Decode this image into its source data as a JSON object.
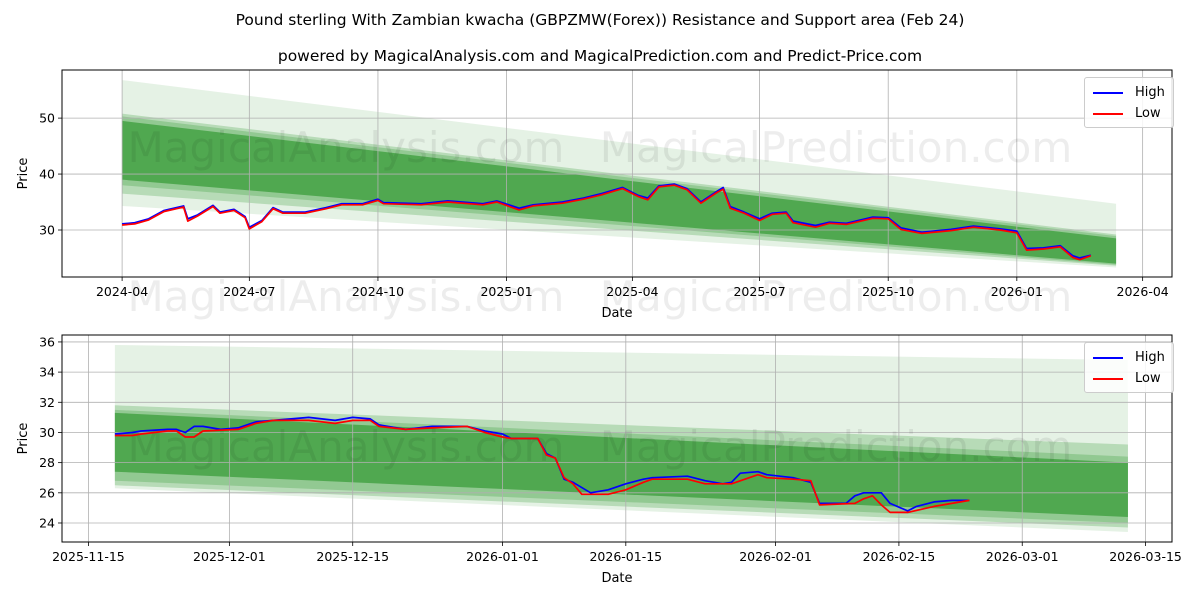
{
  "title": "Pound sterling With Zambian kwacha (GBPZMW(Forex)) Resistance and Support area (Feb 24)",
  "subtitle": "powered by MagicalAnalysis.com and MagicalPrediction.com and Predict-Price.com",
  "watermarks": [
    "MagicalAnalysis.com",
    "MagicalPrediction.com"
  ],
  "colors": {
    "high": "#0000ff",
    "low": "#ff0000",
    "band": "#008000"
  },
  "chart_data": [
    {
      "type": "line",
      "xlabel": "Date",
      "ylabel": "Price",
      "xlim": [
        "2024-02-18",
        "2026-04-22"
      ],
      "ylim": [
        21.6,
        58.6
      ],
      "xticks": [
        "2024-04",
        "2024-07",
        "2024-10",
        "2025-01",
        "2025-04",
        "2025-07",
        "2025-10",
        "2026-01",
        "2026-04"
      ],
      "yticks": [
        30,
        40,
        50
      ],
      "grid": true,
      "legend": {
        "position": "top-right",
        "entries": [
          "High",
          "Low"
        ]
      },
      "bands": {
        "x": [
          "2024-04-01",
          "2026-03-13"
        ],
        "layers": [
          {
            "upper": [
              56.8,
              34.7
            ],
            "lower": [
              34.3,
              23.3
            ],
            "opacity": 0.1
          },
          {
            "upper": [
              50.8,
              29.2
            ],
            "lower": [
              36.5,
              23.6
            ],
            "opacity": 0.2
          },
          {
            "upper": [
              50.3,
              28.9
            ],
            "lower": [
              38.0,
              23.8
            ],
            "opacity": 0.2
          },
          {
            "upper": [
              49.5,
              28.5
            ],
            "lower": [
              39.0,
              24.0
            ],
            "opacity": 0.45
          }
        ]
      },
      "series": [
        {
          "name": "High",
          "x": [
            "2024-04-01",
            "2024-04-10",
            "2024-04-20",
            "2024-05-01",
            "2024-05-15",
            "2024-05-18",
            "2024-05-25",
            "2024-06-05",
            "2024-06-10",
            "2024-06-20",
            "2024-06-28",
            "2024-07-01",
            "2024-07-10",
            "2024-07-18",
            "2024-07-25",
            "2024-08-10",
            "2024-08-25",
            "2024-09-05",
            "2024-09-20",
            "2024-10-01",
            "2024-10-05",
            "2024-11-01",
            "2024-11-20",
            "2024-12-15",
            "2024-12-25",
            "2025-01-10",
            "2025-01-20",
            "2025-02-10",
            "2025-02-25",
            "2025-03-10",
            "2025-03-25",
            "2025-04-05",
            "2025-04-12",
            "2025-04-20",
            "2025-05-01",
            "2025-05-10",
            "2025-05-20",
            "2025-06-01",
            "2025-06-05",
            "2025-06-10",
            "2025-06-20",
            "2025-07-01",
            "2025-07-10",
            "2025-07-20",
            "2025-07-25",
            "2025-08-10",
            "2025-08-20",
            "2025-09-01",
            "2025-09-20",
            "2025-10-01",
            "2025-10-10",
            "2025-10-25",
            "2025-11-15",
            "2025-12-01",
            "2025-12-20",
            "2026-01-01",
            "2026-01-08",
            "2026-01-20",
            "2026-02-01",
            "2026-02-10",
            "2026-02-15",
            "2026-02-23"
          ],
          "values": [
            31.1,
            31.3,
            32.0,
            33.5,
            34.3,
            32.0,
            32.7,
            34.4,
            33.2,
            33.7,
            32.4,
            30.5,
            31.7,
            34.0,
            33.2,
            33.2,
            34.0,
            34.7,
            34.7,
            35.5,
            34.9,
            34.7,
            35.2,
            34.7,
            35.2,
            33.9,
            34.5,
            35.0,
            35.7,
            36.5,
            37.6,
            36.2,
            35.7,
            37.9,
            38.2,
            37.4,
            35.0,
            37.0,
            37.6,
            34.2,
            33.2,
            32.0,
            33.0,
            33.2,
            31.6,
            30.8,
            31.4,
            31.2,
            32.3,
            32.2,
            30.4,
            29.6,
            30.1,
            30.7,
            30.2,
            29.8,
            26.7,
            26.8,
            27.2,
            25.4,
            25.0,
            25.5
          ]
        },
        {
          "name": "Low",
          "x": [
            "2024-04-01",
            "2024-04-10",
            "2024-04-20",
            "2024-05-01",
            "2024-05-15",
            "2024-05-18",
            "2024-05-25",
            "2024-06-05",
            "2024-06-10",
            "2024-06-20",
            "2024-06-28",
            "2024-07-01",
            "2024-07-10",
            "2024-07-18",
            "2024-07-25",
            "2024-08-10",
            "2024-08-25",
            "2024-09-05",
            "2024-09-20",
            "2024-10-01",
            "2024-10-05",
            "2024-11-01",
            "2024-11-20",
            "2024-12-15",
            "2024-12-25",
            "2025-01-10",
            "2025-01-20",
            "2025-02-10",
            "2025-02-25",
            "2025-03-10",
            "2025-03-25",
            "2025-04-05",
            "2025-04-12",
            "2025-04-20",
            "2025-05-01",
            "2025-05-10",
            "2025-05-20",
            "2025-06-01",
            "2025-06-05",
            "2025-06-10",
            "2025-06-20",
            "2025-07-01",
            "2025-07-10",
            "2025-07-20",
            "2025-07-25",
            "2025-08-10",
            "2025-08-20",
            "2025-09-01",
            "2025-09-20",
            "2025-10-01",
            "2025-10-10",
            "2025-10-25",
            "2025-11-15",
            "2025-12-01",
            "2025-12-20",
            "2026-01-01",
            "2026-01-08",
            "2026-01-20",
            "2026-02-01",
            "2026-02-10",
            "2026-02-15",
            "2026-02-23"
          ],
          "values": [
            30.9,
            31.1,
            31.8,
            33.3,
            34.1,
            31.6,
            32.5,
            34.2,
            33.0,
            33.5,
            32.2,
            30.2,
            31.5,
            33.8,
            33.0,
            33.0,
            33.8,
            34.5,
            34.5,
            35.3,
            34.7,
            34.5,
            35.0,
            34.5,
            35.0,
            33.6,
            34.3,
            34.8,
            35.5,
            36.3,
            37.4,
            36.0,
            35.4,
            37.7,
            38.0,
            37.2,
            34.8,
            36.8,
            37.3,
            33.9,
            33.0,
            31.7,
            32.8,
            33.0,
            31.3,
            30.5,
            31.2,
            31.0,
            32.1,
            32.0,
            30.1,
            29.4,
            29.9,
            30.5,
            30.0,
            29.5,
            26.4,
            26.6,
            27.0,
            25.1,
            24.7,
            25.4
          ]
        }
      ]
    },
    {
      "type": "line",
      "xlabel": "Date",
      "ylabel": "Price",
      "xlim": [
        "2025-11-12",
        "2026-03-18"
      ],
      "ylim": [
        22.74,
        36.46
      ],
      "xticks": [
        "2025-11-15",
        "2025-12-01",
        "2025-12-15",
        "2026-01-01",
        "2026-01-15",
        "2026-02-01",
        "2026-02-15",
        "2026-03-01",
        "2026-03-15"
      ],
      "yticks": [
        24,
        26,
        28,
        30,
        32,
        34,
        36
      ],
      "grid": true,
      "legend": {
        "position": "top-right",
        "entries": [
          "High",
          "Low"
        ]
      },
      "bands": {
        "x": [
          "2025-11-18",
          "2026-03-13"
        ],
        "layers": [
          {
            "upper": [
              35.8,
              34.8
            ],
            "lower": [
              26.3,
              23.4
            ],
            "opacity": 0.1
          },
          {
            "upper": [
              31.8,
              29.2
            ],
            "lower": [
              26.5,
              23.7
            ],
            "opacity": 0.2
          },
          {
            "upper": [
              31.5,
              28.4
            ],
            "lower": [
              26.8,
              24.0
            ],
            "opacity": 0.2
          },
          {
            "upper": [
              31.3,
              28.0
            ],
            "lower": [
              27.4,
              24.4
            ],
            "opacity": 0.45
          }
        ]
      },
      "series": [
        {
          "name": "High",
          "x": [
            "2025-11-18",
            "2025-11-20",
            "2025-11-21",
            "2025-11-24",
            "2025-11-25",
            "2025-11-26",
            "2025-11-27",
            "2025-11-28",
            "2025-11-30",
            "2025-12-02",
            "2025-12-04",
            "2025-12-06",
            "2025-12-10",
            "2025-12-13",
            "2025-12-15",
            "2025-12-17",
            "2025-12-18",
            "2025-12-21",
            "2025-12-24",
            "2025-12-28",
            "2025-12-30",
            "2026-01-01",
            "2026-01-02",
            "2026-01-05",
            "2026-01-06",
            "2026-01-07",
            "2026-01-08",
            "2026-01-09",
            "2026-01-11",
            "2026-01-13",
            "2026-01-15",
            "2026-01-17",
            "2026-01-18",
            "2026-01-22",
            "2026-01-24",
            "2026-01-26",
            "2026-01-27",
            "2026-01-28",
            "2026-01-30",
            "2026-01-31",
            "2026-02-03",
            "2026-02-05",
            "2026-02-06",
            "2026-02-09",
            "2026-02-10",
            "2026-02-11",
            "2026-02-13",
            "2026-02-14",
            "2026-02-16",
            "2026-02-17",
            "2026-02-19",
            "2026-02-21",
            "2026-02-23"
          ],
          "values": [
            29.9,
            30.0,
            30.1,
            30.2,
            30.2,
            30.0,
            30.4,
            30.4,
            30.2,
            30.3,
            30.7,
            30.8,
            31.0,
            30.8,
            31.0,
            30.9,
            30.5,
            30.2,
            30.4,
            30.4,
            30.1,
            29.9,
            29.6,
            29.6,
            28.6,
            28.3,
            26.9,
            26.7,
            26.0,
            26.2,
            26.6,
            26.9,
            27.0,
            27.1,
            26.8,
            26.6,
            26.7,
            27.3,
            27.4,
            27.2,
            27.0,
            26.7,
            25.3,
            25.3,
            25.8,
            26.0,
            26.0,
            25.3,
            24.8,
            25.1,
            25.4,
            25.5,
            25.5
          ]
        },
        {
          "name": "Low",
          "x": [
            "2025-11-18",
            "2025-11-20",
            "2025-11-21",
            "2025-11-24",
            "2025-11-25",
            "2025-11-26",
            "2025-11-27",
            "2025-11-28",
            "2025-12-02",
            "2025-12-04",
            "2025-12-06",
            "2025-12-10",
            "2025-12-13",
            "2025-12-15",
            "2025-12-17",
            "2025-12-18",
            "2025-12-21",
            "2025-12-24",
            "2025-12-28",
            "2025-12-30",
            "2026-01-01",
            "2026-01-02",
            "2026-01-05",
            "2026-01-06",
            "2026-01-07",
            "2026-01-08",
            "2026-01-09",
            "2026-01-10",
            "2026-01-13",
            "2026-01-15",
            "2026-01-17",
            "2026-01-18",
            "2026-01-22",
            "2026-01-24",
            "2026-01-27",
            "2026-01-30",
            "2026-01-31",
            "2026-02-03",
            "2026-02-05",
            "2026-02-06",
            "2026-02-10",
            "2026-02-11",
            "2026-02-12",
            "2026-02-13",
            "2026-02-14",
            "2026-02-16",
            "2026-02-19",
            "2026-02-23"
          ],
          "values": [
            29.8,
            29.8,
            29.9,
            30.1,
            30.1,
            29.7,
            29.7,
            30.1,
            30.2,
            30.6,
            30.8,
            30.8,
            30.6,
            30.8,
            30.8,
            30.4,
            30.2,
            30.3,
            30.4,
            30.0,
            29.7,
            29.6,
            29.6,
            28.5,
            28.3,
            27.0,
            26.6,
            25.9,
            25.9,
            26.2,
            26.7,
            26.9,
            26.9,
            26.6,
            26.6,
            27.2,
            27.0,
            26.9,
            26.8,
            25.2,
            25.3,
            25.6,
            25.8,
            25.2,
            24.7,
            24.7,
            25.1,
            25.5
          ]
        }
      ]
    }
  ]
}
